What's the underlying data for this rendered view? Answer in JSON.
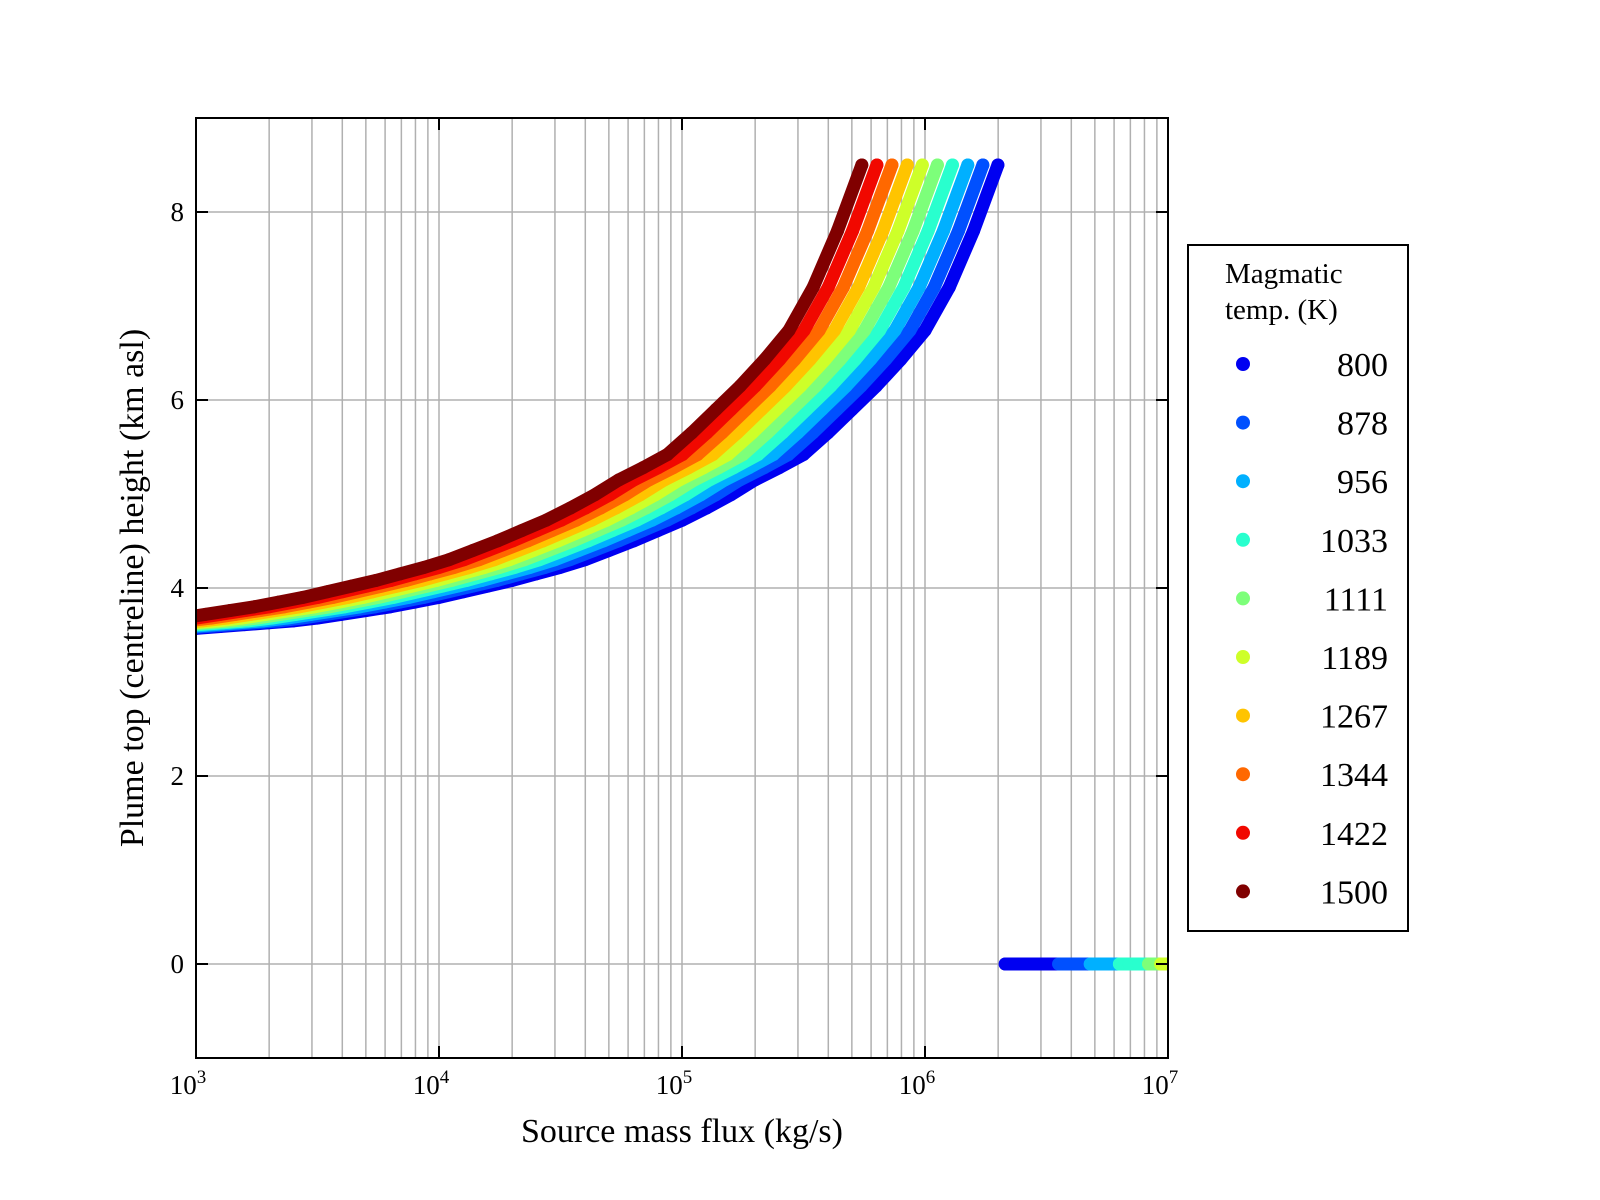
{
  "chart_data": {
    "type": "scatter",
    "title": "",
    "xlabel": "Source mass flux (kg/s)",
    "ylabel": "Plume top (centreline) height (km asl)",
    "xscale": "log",
    "xlim": [
      1000,
      10000000
    ],
    "ylim": [
      -1,
      9
    ],
    "xticks": [
      {
        "base": "10",
        "exp": "3"
      },
      {
        "base": "10",
        "exp": "4"
      },
      {
        "base": "10",
        "exp": "5"
      },
      {
        "base": "10",
        "exp": "6"
      },
      {
        "base": "10",
        "exp": "7"
      }
    ],
    "yticks": [
      "0",
      "2",
      "4",
      "6",
      "8"
    ],
    "grid": true,
    "legend": {
      "title_line1": "Magmatic",
      "title_line2": "temp. (K)",
      "placement": "right-outside"
    },
    "base_curve_y": [
      3.5,
      3.52,
      3.53,
      3.55,
      3.56,
      3.57,
      3.59,
      3.61,
      3.63,
      3.65,
      3.68,
      3.72,
      3.76,
      3.8,
      3.85,
      3.9,
      3.96,
      4.02,
      4.08,
      4.15,
      4.22,
      4.3,
      4.4,
      4.5,
      4.61,
      4.72,
      4.85,
      4.99,
      5.15,
      5.28,
      5.42,
      5.65,
      5.9,
      6.15,
      6.43,
      6.74,
      7.2,
      7.8,
      8.5
    ],
    "base_curve_log10_x_start": 2.5,
    "log10_x_step": 0.1,
    "series": [
      {
        "name": "800",
        "color": "#0000f1",
        "log10_x_shift": 0.0,
        "collapsed_log10_x_start": 6.33
      },
      {
        "name": "878",
        "color": "#0050ff",
        "log10_x_shift": 0.062,
        "collapsed_log10_x_start": 6.55
      },
      {
        "name": "956",
        "color": "#00b0ff",
        "log10_x_shift": 0.124,
        "collapsed_log10_x_start": 6.68
      },
      {
        "name": "1033",
        "color": "#29ffce",
        "log10_x_shift": 0.187,
        "collapsed_log10_x_start": 6.8
      },
      {
        "name": "1111",
        "color": "#7dff7a",
        "log10_x_shift": 0.249,
        "collapsed_log10_x_start": 6.92
      },
      {
        "name": "1189",
        "color": "#ceff29",
        "log10_x_shift": 0.311,
        "collapsed_log10_x_start": 6.97
      },
      {
        "name": "1267",
        "color": "#ffc400",
        "log10_x_shift": 0.373,
        "collapsed_log10_x_start": null
      },
      {
        "name": "1344",
        "color": "#ff6800",
        "log10_x_shift": 0.436,
        "collapsed_log10_x_start": null
      },
      {
        "name": "1422",
        "color": "#f10800",
        "log10_x_shift": 0.498,
        "collapsed_log10_x_start": null
      },
      {
        "name": "1500",
        "color": "#800000",
        "log10_x_shift": 0.56,
        "collapsed_log10_x_start": null
      }
    ]
  }
}
